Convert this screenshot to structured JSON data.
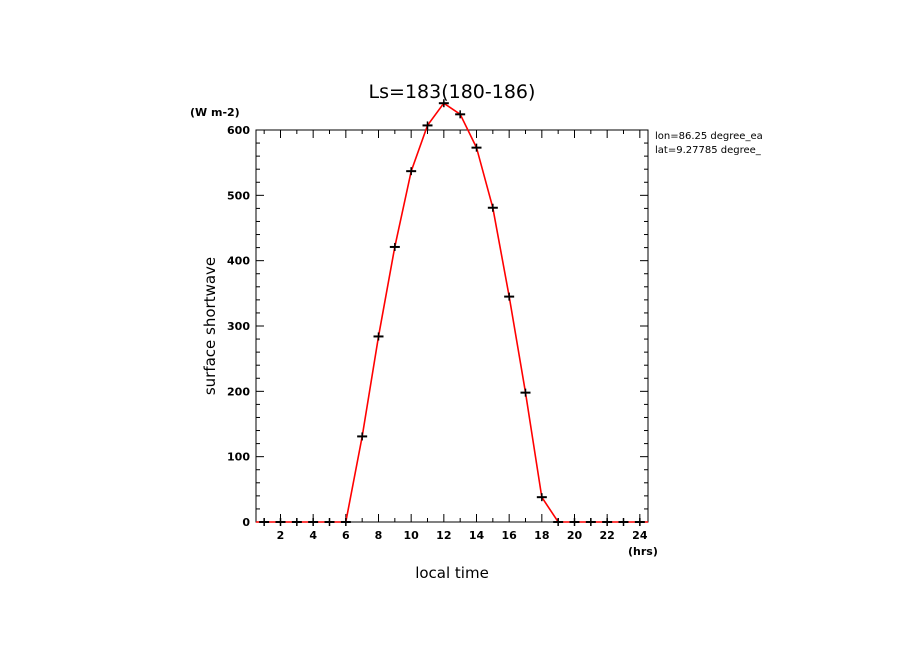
{
  "chart_data": {
    "type": "line",
    "title": "Ls=183(180-186)",
    "xlabel": "local time",
    "ylabel": "surface shortwave",
    "x_unit": "(hrs)",
    "y_unit": "(W m-2)",
    "xlim": [
      0.5,
      24.5
    ],
    "ylim": [
      0,
      600
    ],
    "x_ticks": [
      2,
      4,
      6,
      8,
      10,
      12,
      14,
      16,
      18,
      20,
      22,
      24
    ],
    "y_ticks": [
      0,
      100,
      200,
      300,
      400,
      500,
      600
    ],
    "annotations": [
      "lon=86.25 degree_ea",
      "lat=9.27785 degree_"
    ],
    "grid": false,
    "series": [
      {
        "color": "#ff0000",
        "marker": "+",
        "marker_color": "#000000",
        "x": [
          0.5,
          1,
          2,
          3,
          4,
          5,
          6,
          7,
          8,
          9,
          10,
          11,
          12,
          13,
          14,
          15,
          16,
          17,
          18,
          19,
          20,
          21,
          22,
          23,
          24,
          24.5
        ],
        "y": [
          0,
          0,
          0,
          0,
          0,
          0,
          0,
          131,
          284,
          421,
          537,
          607,
          641,
          624,
          573,
          481,
          345,
          198,
          38,
          0,
          0,
          0,
          0,
          0,
          0,
          0
        ]
      }
    ]
  }
}
